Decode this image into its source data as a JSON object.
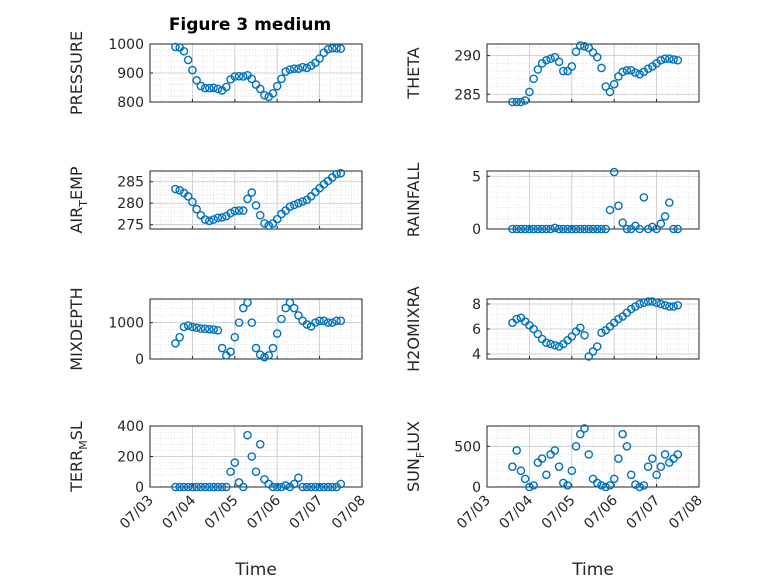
{
  "figure": {
    "title": "Figure 3 medium"
  },
  "chart_data": [
    {
      "type": "scatter",
      "ylabel": "PRESSURE",
      "xlabel": "",
      "title": "Figure 3 medium",
      "xlim": [
        "07/03",
        "07/08"
      ],
      "ylim": [
        800,
        1000
      ],
      "yticks": [
        800,
        900,
        1000
      ],
      "marker": "open-circle",
      "color": "#0072BD",
      "grid": "minor",
      "x": [
        0.6,
        0.7,
        0.8,
        0.9,
        1.0,
        1.1,
        1.2,
        1.3,
        1.4,
        1.5,
        1.6,
        1.7,
        1.8,
        1.9,
        2.0,
        2.1,
        2.2,
        2.3,
        2.4,
        2.5,
        2.6,
        2.7,
        2.8,
        2.9,
        3.0,
        3.1,
        3.2,
        3.3,
        3.4,
        3.5,
        3.6,
        3.7,
        3.8,
        3.9,
        4.0,
        4.1,
        4.2,
        4.3,
        4.4,
        4.5
      ],
      "y": [
        990,
        988,
        975,
        945,
        910,
        875,
        855,
        848,
        848,
        849,
        845,
        840,
        852,
        878,
        888,
        889,
        888,
        892,
        880,
        860,
        845,
        823,
        818,
        830,
        855,
        880,
        905,
        912,
        915,
        915,
        920,
        918,
        925,
        935,
        950,
        970,
        982,
        985,
        985,
        984
      ]
    },
    {
      "type": "scatter",
      "ylabel": "THETA",
      "xlabel": "",
      "xlim": [
        "07/03",
        "07/08"
      ],
      "ylim": [
        284,
        291.5
      ],
      "yticks": [
        285,
        290
      ],
      "marker": "open-circle",
      "color": "#0072BD",
      "grid": "minor",
      "x": [
        0.6,
        0.7,
        0.8,
        0.9,
        1.0,
        1.1,
        1.2,
        1.3,
        1.4,
        1.5,
        1.6,
        1.7,
        1.8,
        1.9,
        2.0,
        2.1,
        2.2,
        2.3,
        2.4,
        2.5,
        2.6,
        2.7,
        2.8,
        2.9,
        3.0,
        3.1,
        3.2,
        3.3,
        3.4,
        3.5,
        3.6,
        3.7,
        3.8,
        3.9,
        4.0,
        4.1,
        4.2,
        4.3,
        4.4,
        4.5
      ],
      "y": [
        284.0,
        284.0,
        284.0,
        284.2,
        285.3,
        287.0,
        288.2,
        289.0,
        289.4,
        289.6,
        289.8,
        289.2,
        288.0,
        288.0,
        288.6,
        290.5,
        291.3,
        291.2,
        291.0,
        290.4,
        289.8,
        288.4,
        286.0,
        285.3,
        286.3,
        287.3,
        287.9,
        288.1,
        288.1,
        287.8,
        287.6,
        287.9,
        288.3,
        288.6,
        289.0,
        289.4,
        289.6,
        289.6,
        289.5,
        289.4
      ]
    },
    {
      "type": "scatter",
      "ylabel": "AIR_TEMP",
      "xlabel": "",
      "xlim": [
        "07/03",
        "07/08"
      ],
      "ylim": [
        274,
        287.5
      ],
      "yticks": [
        275,
        280,
        285
      ],
      "marker": "open-circle",
      "color": "#0072BD",
      "grid": "minor",
      "x": [
        0.6,
        0.7,
        0.8,
        0.9,
        1.0,
        1.1,
        1.2,
        1.3,
        1.4,
        1.5,
        1.6,
        1.7,
        1.8,
        1.9,
        2.0,
        2.1,
        2.2,
        2.3,
        2.4,
        2.5,
        2.6,
        2.7,
        2.8,
        2.9,
        3.0,
        3.1,
        3.2,
        3.3,
        3.4,
        3.5,
        3.6,
        3.7,
        3.8,
        3.9,
        4.0,
        4.1,
        4.2,
        4.3,
        4.4,
        4.5
      ],
      "y": [
        283.3,
        283.0,
        282.4,
        281.6,
        280.3,
        278.6,
        277.2,
        276.2,
        275.9,
        276.2,
        276.6,
        276.7,
        277.0,
        277.7,
        278.2,
        278.3,
        278.3,
        281.0,
        282.5,
        279.5,
        277.2,
        275.3,
        274.8,
        275.3,
        276.3,
        277.5,
        278.3,
        279.2,
        279.6,
        280.0,
        280.4,
        280.8,
        281.6,
        282.6,
        283.5,
        284.4,
        285.2,
        286.0,
        286.8,
        287.0
      ]
    },
    {
      "type": "scatter",
      "ylabel": "RAINFALL",
      "xlabel": "",
      "xlim": [
        "07/03",
        "07/08"
      ],
      "ylim": [
        0,
        5.5
      ],
      "yticks": [
        0,
        5
      ],
      "marker": "open-circle",
      "color": "#0072BD",
      "grid": "minor",
      "x": [
        0.6,
        0.7,
        0.8,
        0.9,
        1.0,
        1.1,
        1.2,
        1.3,
        1.4,
        1.5,
        1.6,
        1.7,
        1.8,
        1.9,
        2.0,
        2.1,
        2.2,
        2.3,
        2.4,
        2.5,
        2.6,
        2.7,
        2.8,
        2.9,
        3.0,
        3.1,
        3.2,
        3.3,
        3.4,
        3.5,
        3.6,
        3.7,
        3.8,
        3.9,
        4.0,
        4.1,
        4.2,
        4.3,
        4.4,
        4.5
      ],
      "y": [
        0,
        0,
        0,
        0,
        0,
        0,
        0,
        0,
        0,
        0,
        0.1,
        0,
        0,
        0,
        0,
        0,
        0,
        0,
        0,
        0,
        0,
        0,
        0,
        1.8,
        5.4,
        2.2,
        0.6,
        0,
        0,
        0.3,
        0,
        3.0,
        0,
        0.2,
        0,
        0.5,
        1.2,
        2.5,
        0,
        0
      ]
    },
    {
      "type": "scatter",
      "ylabel": "MIXDEPTH",
      "xlabel": "",
      "xlim": [
        "07/03",
        "07/08"
      ],
      "ylim": [
        0,
        1650
      ],
      "yticks": [
        0,
        1000
      ],
      "marker": "open-circle",
      "color": "#0072BD",
      "grid": "minor",
      "x": [
        0.6,
        0.7,
        0.8,
        0.9,
        1.0,
        1.1,
        1.2,
        1.3,
        1.4,
        1.5,
        1.6,
        1.7,
        1.8,
        1.9,
        2.0,
        2.1,
        2.2,
        2.3,
        2.4,
        2.5,
        2.6,
        2.7,
        2.8,
        2.9,
        3.0,
        3.1,
        3.2,
        3.3,
        3.4,
        3.5,
        3.6,
        3.7,
        3.8,
        3.9,
        4.0,
        4.1,
        4.2,
        4.3,
        4.4,
        4.5
      ],
      "y": [
        430,
        600,
        880,
        920,
        880,
        860,
        840,
        830,
        820,
        810,
        790,
        300,
        100,
        200,
        600,
        1000,
        1400,
        1550,
        1000,
        300,
        120,
        50,
        100,
        300,
        700,
        1100,
        1400,
        1550,
        1400,
        1200,
        1050,
        950,
        900,
        1000,
        1050,
        1050,
        1000,
        1000,
        1050,
        1050
      ]
    },
    {
      "type": "scatter",
      "ylabel": "H2OMIXRA",
      "xlabel": "",
      "xlim": [
        "07/03",
        "07/08"
      ],
      "ylim": [
        3.6,
        8.4
      ],
      "yticks": [
        4,
        6,
        8
      ],
      "marker": "open-circle",
      "color": "#0072BD",
      "grid": "minor",
      "x": [
        0.6,
        0.7,
        0.8,
        0.9,
        1.0,
        1.1,
        1.2,
        1.3,
        1.4,
        1.5,
        1.6,
        1.7,
        1.8,
        1.9,
        2.0,
        2.1,
        2.2,
        2.3,
        2.4,
        2.5,
        2.6,
        2.7,
        2.8,
        2.9,
        3.0,
        3.1,
        3.2,
        3.3,
        3.4,
        3.5,
        3.6,
        3.7,
        3.8,
        3.9,
        4.0,
        4.1,
        4.2,
        4.3,
        4.4,
        4.5
      ],
      "y": [
        6.5,
        6.8,
        6.9,
        6.6,
        6.3,
        6.0,
        5.6,
        5.2,
        4.9,
        4.8,
        4.7,
        4.6,
        4.8,
        5.1,
        5.4,
        5.8,
        6.1,
        5.5,
        3.8,
        4.2,
        4.6,
        5.7,
        5.9,
        6.2,
        6.5,
        6.8,
        7.0,
        7.3,
        7.6,
        7.8,
        8.0,
        8.1,
        8.2,
        8.2,
        8.1,
        8.0,
        7.9,
        7.8,
        7.8,
        7.9
      ]
    },
    {
      "type": "scatter",
      "ylabel": "TERR_MSL",
      "xlabel": "Time",
      "xlim": [
        "07/03",
        "07/08"
      ],
      "ylim": [
        0,
        400
      ],
      "yticks": [
        0,
        200,
        400
      ],
      "xticks": [
        "07/03",
        "07/04",
        "07/05",
        "07/06",
        "07/07",
        "07/08"
      ],
      "marker": "open-circle",
      "color": "#0072BD",
      "grid": "minor",
      "x": [
        0.6,
        0.7,
        0.8,
        0.9,
        1.0,
        1.1,
        1.2,
        1.3,
        1.4,
        1.5,
        1.6,
        1.7,
        1.8,
        1.9,
        2.0,
        2.1,
        2.2,
        2.3,
        2.4,
        2.5,
        2.6,
        2.7,
        2.8,
        2.9,
        3.0,
        3.1,
        3.2,
        3.3,
        3.4,
        3.5,
        3.6,
        3.7,
        3.8,
        3.9,
        4.0,
        4.1,
        4.2,
        4.3,
        4.4,
        4.5
      ],
      "y": [
        0,
        0,
        0,
        0,
        0,
        0,
        0,
        0,
        0,
        0,
        0,
        0,
        0,
        100,
        160,
        30,
        0,
        340,
        200,
        100,
        280,
        50,
        20,
        0,
        0,
        0,
        10,
        0,
        20,
        60,
        0,
        0,
        0,
        0,
        0,
        0,
        0,
        0,
        0,
        20
      ]
    },
    {
      "type": "scatter",
      "ylabel": "SUN_FLUX",
      "xlabel": "Time",
      "xlim": [
        "07/03",
        "07/08"
      ],
      "ylim": [
        0,
        750
      ],
      "yticks": [
        0,
        500
      ],
      "xticks": [
        "07/03",
        "07/04",
        "07/05",
        "07/06",
        "07/07",
        "07/08"
      ],
      "marker": "open-circle",
      "color": "#0072BD",
      "grid": "minor",
      "x": [
        0.6,
        0.7,
        0.8,
        0.9,
        1.0,
        1.1,
        1.2,
        1.3,
        1.4,
        1.5,
        1.6,
        1.7,
        1.8,
        1.9,
        2.0,
        2.1,
        2.2,
        2.3,
        2.4,
        2.5,
        2.6,
        2.7,
        2.8,
        2.9,
        3.0,
        3.1,
        3.2,
        3.3,
        3.4,
        3.5,
        3.6,
        3.7,
        3.8,
        3.9,
        4.0,
        4.1,
        4.2,
        4.3,
        4.4,
        4.5
      ],
      "y": [
        250,
        450,
        200,
        100,
        0,
        20,
        300,
        350,
        150,
        400,
        450,
        250,
        50,
        20,
        200,
        500,
        650,
        720,
        400,
        100,
        50,
        20,
        0,
        20,
        100,
        350,
        650,
        500,
        150,
        30,
        0,
        20,
        250,
        350,
        150,
        250,
        400,
        300,
        350,
        400
      ]
    }
  ]
}
